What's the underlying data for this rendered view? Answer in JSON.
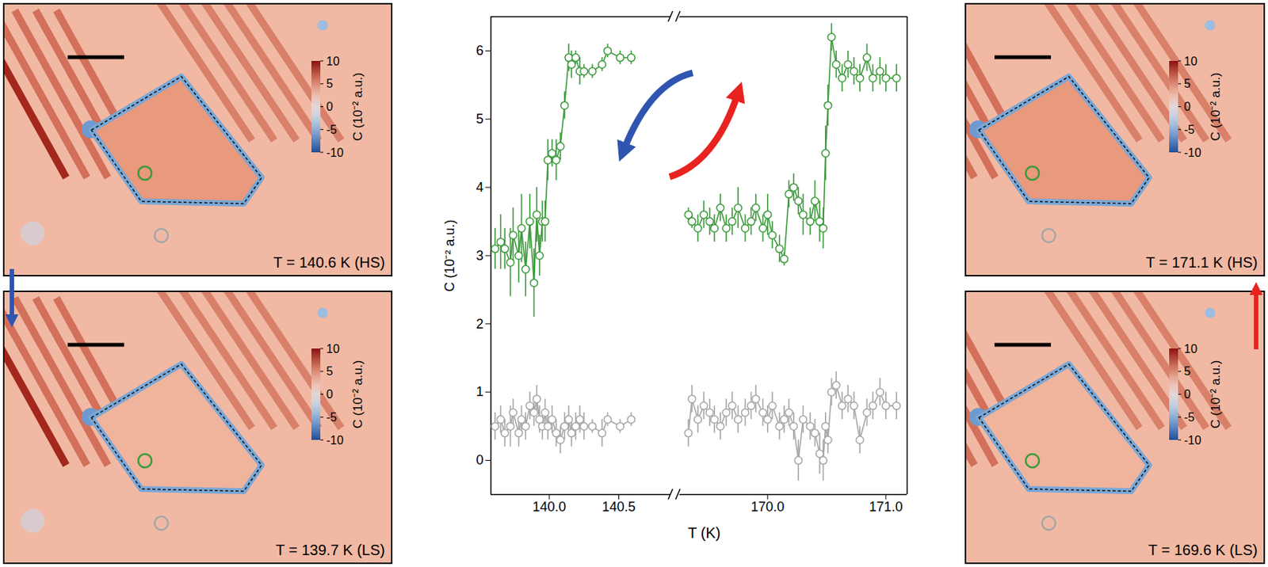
{
  "chart_data": {
    "type": "scatter",
    "x_label": "T (K)",
    "y_label": "C (10⁻² a.u.)",
    "ylim": [
      -0.5,
      6.5
    ],
    "yticks": [
      0,
      1,
      2,
      3,
      4,
      5,
      6
    ],
    "marker": "circle",
    "line_style": "solid",
    "panels": [
      {
        "xlim": [
          139.58,
          140.88
        ],
        "xticks": [
          {
            "value": 140,
            "label": "140.0"
          },
          140.5
        ],
        "series": [
          {
            "color": "#3a9a3a",
            "x": [
              139.61,
              139.65,
              139.68,
              139.72,
              139.74,
              139.78,
              139.8,
              139.83,
              139.86,
              139.89,
              139.91,
              139.93,
              139.95,
              139.97,
              139.99,
              140.02,
              140.05,
              140.08,
              140.11,
              140.14,
              140.16,
              140.19,
              140.22,
              140.25,
              140.31,
              140.38,
              140.42,
              140.51,
              140.59
            ],
            "values": [
              3.1,
              3.2,
              3.1,
              2.9,
              3.3,
              3.0,
              3.4,
              2.8,
              3.5,
              2.6,
              3.6,
              3.0,
              3.5,
              3.5,
              4.4,
              4.5,
              4.4,
              4.6,
              5.2,
              5.9,
              5.8,
              5.9,
              5.7,
              5.7,
              5.7,
              5.8,
              6.0,
              5.9,
              5.9
            ],
            "errors": [
              0.3,
              0.4,
              0.3,
              0.5,
              0.4,
              0.4,
              0.5,
              0.4,
              0.4,
              0.5,
              0.4,
              0.3,
              0.3,
              0.3,
              0.3,
              0.2,
              0.3,
              0.2,
              0.2,
              0.2,
              0.2,
              0.1,
              0.2,
              0.1,
              0.1,
              0.1,
              0.1,
              0.1,
              0.1
            ]
          },
          {
            "color": "#a6a6a6",
            "x": [
              139.61,
              139.65,
              139.68,
              139.72,
              139.74,
              139.78,
              139.8,
              139.83,
              139.86,
              139.89,
              139.91,
              139.93,
              139.95,
              139.97,
              139.99,
              140.02,
              140.05,
              140.08,
              140.11,
              140.14,
              140.16,
              140.19,
              140.22,
              140.25,
              140.31,
              140.38,
              140.42,
              140.51,
              140.59
            ],
            "values": [
              0.5,
              0.6,
              0.4,
              0.5,
              0.7,
              0.4,
              0.6,
              0.5,
              0.8,
              0.7,
              0.9,
              0.6,
              0.5,
              0.7,
              0.5,
              0.6,
              0.4,
              0.3,
              0.5,
              0.6,
              0.4,
              0.5,
              0.6,
              0.5,
              0.5,
              0.4,
              0.6,
              0.5,
              0.6
            ],
            "errors": [
              0.2,
              0.2,
              0.2,
              0.3,
              0.2,
              0.2,
              0.2,
              0.2,
              0.2,
              0.2,
              0.2,
              0.2,
              0.2,
              0.2,
              0.2,
              0.2,
              0.2,
              0.2,
              0.2,
              0.2,
              0.2,
              0.2,
              0.2,
              0.2,
              0.1,
              0.2,
              0.1,
              0.1,
              0.1
            ]
          }
        ]
      },
      {
        "xlim": [
          169.25,
          171.18
        ],
        "xticks": [
          {
            "value": 170,
            "label": "170.0"
          },
          {
            "value": 171,
            "label": "171.0"
          }
        ],
        "series": [
          {
            "color": "#3a9a3a",
            "x": [
              169.33,
              169.36,
              169.41,
              169.46,
              169.51,
              169.55,
              169.6,
              169.65,
              169.7,
              169.75,
              169.81,
              169.86,
              169.9,
              169.96,
              170.0,
              170.04,
              170.1,
              170.14,
              170.18,
              170.22,
              170.26,
              170.3,
              170.36,
              170.4,
              170.44,
              170.47,
              170.49,
              170.51,
              170.54,
              170.58,
              170.63,
              170.68,
              170.73,
              170.78,
              170.84,
              170.89,
              170.95,
              171.0,
              171.09
            ],
            "values": [
              3.6,
              3.5,
              3.4,
              3.6,
              3.5,
              3.4,
              3.7,
              3.4,
              3.5,
              3.7,
              3.4,
              3.5,
              3.7,
              3.4,
              3.6,
              3.3,
              3.1,
              2.95,
              3.9,
              4.0,
              3.8,
              3.6,
              3.5,
              3.8,
              3.5,
              3.4,
              4.5,
              5.2,
              6.2,
              5.8,
              5.6,
              5.8,
              5.7,
              5.6,
              5.9,
              5.6,
              5.7,
              5.6,
              5.6
            ],
            "errors": [
              0.1,
              0.1,
              0.2,
              0.2,
              0.2,
              0.2,
              0.2,
              0.2,
              0.2,
              0.3,
              0.2,
              0.2,
              0.2,
              0.2,
              0.3,
              0.2,
              0.2,
              0.1,
              0.2,
              0.2,
              0.2,
              0.3,
              0.2,
              0.3,
              0.3,
              0.3,
              0.4,
              0.3,
              0.2,
              0.2,
              0.2,
              0.2,
              0.2,
              0.2,
              0.2,
              0.2,
              0.2,
              0.2,
              0.2
            ]
          },
          {
            "color": "#a6a6a6",
            "x": [
              169.33,
              169.36,
              169.41,
              169.46,
              169.51,
              169.55,
              169.6,
              169.65,
              169.7,
              169.75,
              169.81,
              169.86,
              169.9,
              169.96,
              170.0,
              170.04,
              170.1,
              170.14,
              170.18,
              170.22,
              170.26,
              170.3,
              170.36,
              170.4,
              170.44,
              170.47,
              170.49,
              170.51,
              170.54,
              170.58,
              170.63,
              170.68,
              170.73,
              170.78,
              170.84,
              170.89,
              170.95,
              171.0,
              171.09
            ],
            "values": [
              0.4,
              0.9,
              0.6,
              0.8,
              0.7,
              0.6,
              0.5,
              0.7,
              0.8,
              0.6,
              0.7,
              0.8,
              0.9,
              0.7,
              0.6,
              0.8,
              0.5,
              0.6,
              0.7,
              0.5,
              0.0,
              0.6,
              0.5,
              0.4,
              0.1,
              0.0,
              0.5,
              0.3,
              1.0,
              1.1,
              0.8,
              0.9,
              0.8,
              0.3,
              0.7,
              0.8,
              1.0,
              0.8,
              0.8
            ],
            "errors": [
              0.2,
              0.2,
              0.2,
              0.2,
              0.2,
              0.2,
              0.2,
              0.2,
              0.2,
              0.2,
              0.2,
              0.2,
              0.2,
              0.2,
              0.2,
              0.2,
              0.2,
              0.2,
              0.2,
              0.2,
              0.3,
              0.2,
              0.2,
              0.2,
              0.3,
              0.3,
              0.2,
              0.2,
              0.2,
              0.2,
              0.2,
              0.2,
              0.2,
              0.2,
              0.2,
              0.2,
              0.2,
              0.2,
              0.2
            ]
          }
        ]
      }
    ]
  },
  "image_panels": [
    {
      "temperature_label": "T = 140.6 K (HS)",
      "colorbar": {
        "label": "C (10⁻² a.u.)",
        "range": [
          -10,
          10
        ],
        "ticks": [
          10,
          5,
          0,
          -5,
          -10
        ]
      }
    },
    {
      "temperature_label": "T = 139.7 K (LS)",
      "colorbar": {
        "label": "C (10⁻² a.u.)",
        "range": [
          -10,
          10
        ],
        "ticks": [
          10,
          5,
          0,
          -5,
          -10
        ]
      }
    },
    {
      "temperature_label": "T = 171.1 K (HS)",
      "colorbar": {
        "label": "C (10⁻² a.u.)",
        "range": [
          -10,
          10
        ],
        "ticks": [
          10,
          5,
          0,
          -5,
          -10
        ]
      }
    },
    {
      "temperature_label": "T = 169.6 K (LS)",
      "colorbar": {
        "label": "C (10⁻² a.u.)",
        "range": [
          -10,
          10
        ],
        "ticks": [
          10,
          5,
          0,
          -5,
          -10
        ]
      }
    }
  ]
}
